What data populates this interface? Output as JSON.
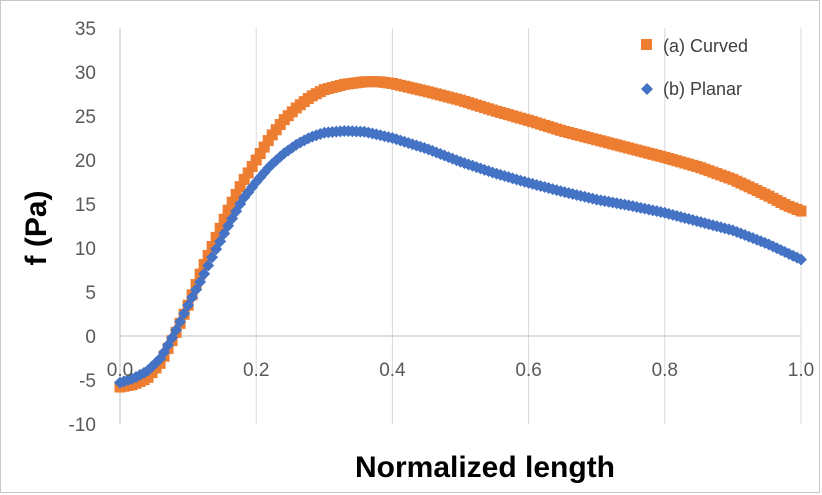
{
  "chart_data": {
    "type": "scatter",
    "title": "",
    "xlabel": "Normalized length",
    "ylabel": "f (Pa)",
    "xlim": [
      0.0,
      1.0
    ],
    "ylim": [
      -10,
      35
    ],
    "x_ticks": [
      0.0,
      0.2,
      0.4,
      0.6,
      0.8,
      1.0
    ],
    "x_tick_labels": [
      "0.0",
      "0.2",
      "0.4",
      "0.6",
      "0.8",
      "1.0"
    ],
    "y_ticks": [
      -10,
      -5,
      0,
      5,
      10,
      15,
      20,
      25,
      30,
      35
    ],
    "y_tick_labels": [
      "-10",
      "-5",
      "0",
      "5",
      "10",
      "15",
      "20",
      "25",
      "30",
      "35"
    ],
    "grid": "vertical",
    "legend_position": "top-right",
    "series": [
      {
        "name": "(a) Curved",
        "marker": "square",
        "color": "#ED7D31",
        "points": [
          [
            0.0,
            -5.8
          ],
          [
            0.02,
            -5.5
          ],
          [
            0.04,
            -4.8
          ],
          [
            0.06,
            -3.0
          ],
          [
            0.08,
            0.0
          ],
          [
            0.1,
            3.5
          ],
          [
            0.12,
            7.5
          ],
          [
            0.14,
            11.0
          ],
          [
            0.16,
            14.5
          ],
          [
            0.18,
            17.5
          ],
          [
            0.2,
            20.0
          ],
          [
            0.22,
            22.5
          ],
          [
            0.24,
            24.5
          ],
          [
            0.26,
            26.0
          ],
          [
            0.28,
            27.2
          ],
          [
            0.3,
            28.0
          ],
          [
            0.33,
            28.6
          ],
          [
            0.36,
            28.9
          ],
          [
            0.38,
            28.9
          ],
          [
            0.4,
            28.7
          ],
          [
            0.45,
            27.8
          ],
          [
            0.5,
            26.8
          ],
          [
            0.55,
            25.6
          ],
          [
            0.6,
            24.5
          ],
          [
            0.65,
            23.3
          ],
          [
            0.7,
            22.3
          ],
          [
            0.75,
            21.3
          ],
          [
            0.8,
            20.3
          ],
          [
            0.85,
            19.2
          ],
          [
            0.9,
            17.8
          ],
          [
            0.95,
            16.0
          ],
          [
            0.98,
            14.8
          ],
          [
            1.0,
            14.2
          ]
        ]
      },
      {
        "name": "(b) Planar",
        "marker": "diamond",
        "color": "#4472C4",
        "points": [
          [
            0.0,
            -5.3
          ],
          [
            0.02,
            -4.8
          ],
          [
            0.04,
            -4.0
          ],
          [
            0.06,
            -2.5
          ],
          [
            0.08,
            0.3
          ],
          [
            0.1,
            3.5
          ],
          [
            0.12,
            6.5
          ],
          [
            0.14,
            9.7
          ],
          [
            0.16,
            12.7
          ],
          [
            0.18,
            15.5
          ],
          [
            0.2,
            17.5
          ],
          [
            0.22,
            19.3
          ],
          [
            0.24,
            20.7
          ],
          [
            0.26,
            21.8
          ],
          [
            0.28,
            22.6
          ],
          [
            0.3,
            23.1
          ],
          [
            0.33,
            23.3
          ],
          [
            0.36,
            23.2
          ],
          [
            0.4,
            22.5
          ],
          [
            0.45,
            21.3
          ],
          [
            0.5,
            19.8
          ],
          [
            0.55,
            18.5
          ],
          [
            0.6,
            17.4
          ],
          [
            0.65,
            16.4
          ],
          [
            0.7,
            15.5
          ],
          [
            0.75,
            14.8
          ],
          [
            0.8,
            14.0
          ],
          [
            0.85,
            13.0
          ],
          [
            0.9,
            12.0
          ],
          [
            0.95,
            10.5
          ],
          [
            1.0,
            8.7
          ]
        ]
      }
    ]
  }
}
